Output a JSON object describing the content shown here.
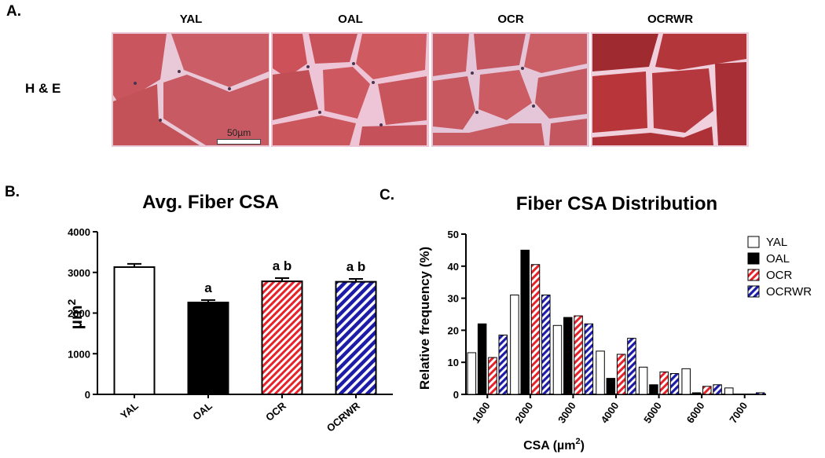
{
  "panel_a": {
    "letter": "A.",
    "row_label": "H & E",
    "columns": [
      "YAL",
      "OAL",
      "OCR",
      "OCRWR"
    ],
    "scale_bar": "50µm",
    "tile_colors": {
      "YAL": {
        "bg": "#e9c9d8",
        "fiber": "#c9565e"
      },
      "OAL": {
        "bg": "#eec5d6",
        "fiber": "#cc5158"
      },
      "OCR": {
        "bg": "#e4c6d8",
        "fiber": "#c95a62"
      },
      "OCRWR": {
        "bg": "#f0d0dc",
        "fiber": "#b8353a"
      }
    }
  },
  "panel_b": {
    "letter": "B.",
    "chart_data": {
      "type": "bar",
      "title": "Avg. Fiber CSA",
      "ylabel": "µm",
      "ylabel_superscript": "2",
      "ylim": [
        0,
        4000
      ],
      "yticks": [
        "0",
        "1000",
        "2000",
        "3000",
        "4000"
      ],
      "categories": [
        "YAL",
        "OAL",
        "OCR",
        "OCRWR"
      ],
      "values": [
        3130,
        2260,
        2780,
        2770
      ],
      "errors": [
        80,
        60,
        80,
        70
      ],
      "annotations": [
        "",
        "a",
        "a b",
        "a b"
      ],
      "fills": [
        "white",
        "black",
        "red-hatch",
        "blue-hatch"
      ]
    }
  },
  "panel_c": {
    "letter": "C.",
    "chart_data": {
      "type": "bar",
      "title": "Fiber CSA Distribution",
      "ylabel": "Relative frequency (%)",
      "xlabel": "CSA (µm",
      "xlabel_superscript": "2",
      "xlabel_suffix": ")",
      "ylim": [
        0,
        50
      ],
      "yticks": [
        "0",
        "10",
        "20",
        "30",
        "40",
        "50"
      ],
      "categories": [
        "1000",
        "2000",
        "3000",
        "4000",
        "5000",
        "6000",
        "7000"
      ],
      "legend_position": "top-right",
      "series": [
        {
          "name": "YAL",
          "fill": "white",
          "values": [
            13,
            31,
            21.5,
            13.5,
            8.5,
            8,
            2
          ]
        },
        {
          "name": "OAL",
          "fill": "black",
          "values": [
            22,
            45,
            24,
            5,
            3,
            0.5,
            0
          ]
        },
        {
          "name": "OCR",
          "fill": "red-hatch",
          "values": [
            11.5,
            40.5,
            24.5,
            12.5,
            7,
            2.5,
            0
          ]
        },
        {
          "name": "OCRWR",
          "fill": "blue-hatch",
          "values": [
            18.5,
            31,
            22,
            17.5,
            6.5,
            3,
            0.5
          ]
        }
      ]
    }
  }
}
